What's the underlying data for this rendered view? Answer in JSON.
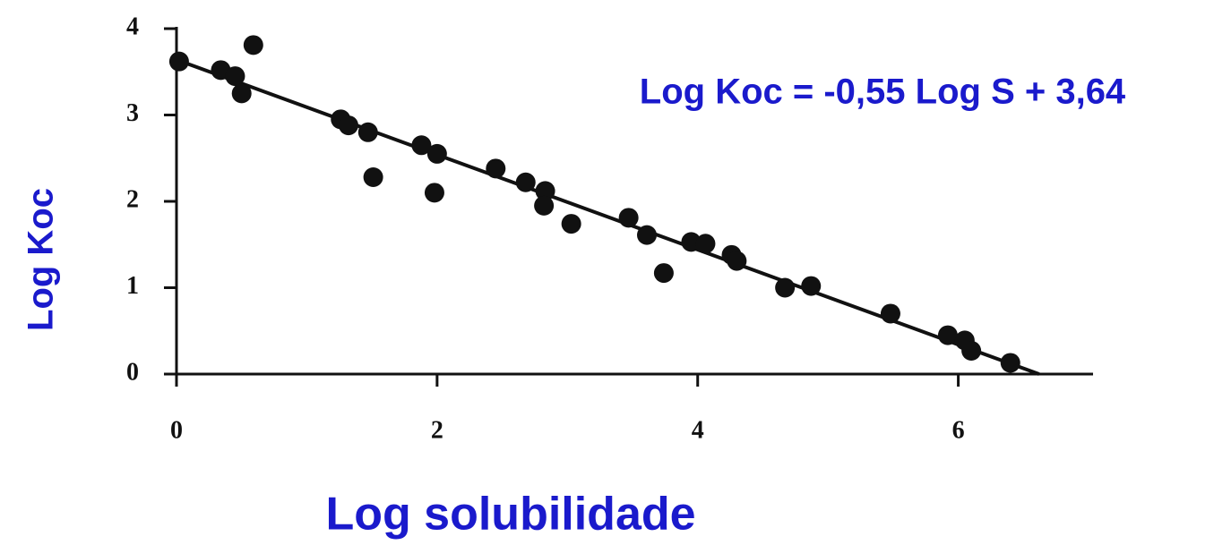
{
  "chart_data": {
    "type": "scatter",
    "annotation": "Log Koc = -0,55 Log S + 3,64",
    "x_label": "Log solubilidade",
    "y_label": "Log Koc",
    "color": "#111111",
    "x": [
      0.02,
      0.34,
      0.45,
      0.5,
      0.59,
      1.26,
      1.32,
      1.47,
      1.51,
      1.88,
      2.0,
      1.98,
      2.45,
      2.68,
      2.83,
      2.82,
      3.03,
      3.47,
      3.61,
      3.74,
      3.95,
      4.06,
      4.26,
      4.3,
      4.67,
      4.87,
      5.48,
      5.92,
      6.05,
      6.1,
      6.4
    ],
    "values": [
      3.62,
      3.52,
      3.45,
      3.25,
      3.81,
      2.95,
      2.88,
      2.8,
      2.28,
      2.65,
      2.55,
      2.1,
      2.38,
      2.22,
      2.12,
      1.95,
      1.74,
      1.81,
      1.61,
      1.17,
      1.53,
      1.51,
      1.38,
      1.31,
      1.0,
      1.02,
      0.7,
      0.45,
      0.39,
      0.27,
      0.13
    ],
    "trendline": {
      "x": [
        0,
        6.62
      ],
      "y": [
        3.64,
        0
      ]
    },
    "xlim": [
      0,
      7
    ],
    "ylim": [
      0,
      4
    ],
    "xticks": [
      0,
      2,
      4,
      6
    ],
    "yticks": [
      0,
      1,
      2,
      3,
      4
    ]
  }
}
